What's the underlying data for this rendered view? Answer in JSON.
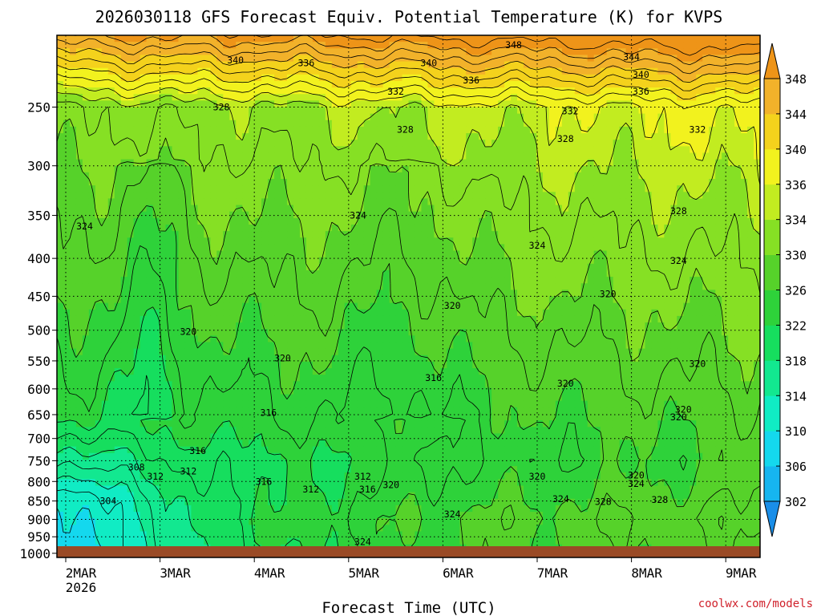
{
  "chart_data": {
    "type": "heatmap",
    "title": "2026030118 GFS Forecast Equiv. Potential Temperature (K) for KVPS",
    "xlabel": "Forecast Time (UTC)",
    "ylabel": "",
    "credit": "coolwx.com/models",
    "x_ticks": [
      "2MAR",
      "3MAR",
      "4MAR",
      "5MAR",
      "6MAR",
      "7MAR",
      "8MAR",
      "9MAR"
    ],
    "x_year_label": "2026",
    "x_range": [
      "2026-03-02T00",
      "2026-03-09T00"
    ],
    "y_ticks": [
      250,
      300,
      350,
      400,
      450,
      500,
      550,
      600,
      650,
      700,
      750,
      800,
      850,
      900,
      950,
      1000
    ],
    "y_range": [
      200,
      1013
    ],
    "y_scale": "log-pressure (inverted)",
    "colorbar": {
      "levels": [
        302,
        306,
        310,
        314,
        318,
        322,
        326,
        330,
        334,
        336,
        340,
        344,
        348
      ],
      "colors": [
        "#1a8ee8",
        "#16b5f0",
        "#14d8ee",
        "#10ecc4",
        "#12e890",
        "#16de5e",
        "#2ed23a",
        "#56d22a",
        "#86e024",
        "#c2ec20",
        "#f2f21e",
        "#f4d21c",
        "#f2b22a",
        "#ee9418"
      ],
      "extend": "both"
    },
    "series": [
      {
        "name": "time_days",
        "values": [
          0,
          0.5,
          1,
          1.5,
          2,
          2.5,
          3,
          3.5,
          4,
          4.5,
          5,
          5.5,
          6,
          6.5,
          7
        ]
      },
      {
        "name": "theta_e_250hPa",
        "values": [
          325,
          328,
          330,
          331,
          332,
          332,
          332,
          332,
          333,
          333,
          334,
          334,
          334,
          335,
          336
        ]
      },
      {
        "name": "theta_e_500hPa",
        "values": [
          322,
          321,
          322,
          320,
          321,
          319,
          319,
          318,
          320,
          321,
          322,
          322,
          323,
          323,
          323
        ]
      },
      {
        "name": "theta_e_800hPa",
        "values": [
          304,
          307,
          312,
          312,
          313,
          314,
          316,
          320,
          320,
          322,
          322,
          324,
          326,
          326,
          327
        ]
      }
    ],
    "contour_labels": [
      {
        "value": 348,
        "t": 4.75,
        "p": 206
      },
      {
        "value": 344,
        "t": 6.0,
        "p": 214
      },
      {
        "value": 340,
        "t": 1.8,
        "p": 216
      },
      {
        "value": 336,
        "t": 2.55,
        "p": 218
      },
      {
        "value": 340,
        "t": 3.85,
        "p": 218
      },
      {
        "value": 336,
        "t": 4.3,
        "p": 230
      },
      {
        "value": 340,
        "t": 6.1,
        "p": 226
      },
      {
        "value": 336,
        "t": 6.1,
        "p": 238
      },
      {
        "value": 332,
        "t": 3.5,
        "p": 238
      },
      {
        "value": 328,
        "t": 1.65,
        "p": 250
      },
      {
        "value": 332,
        "t": 5.35,
        "p": 253
      },
      {
        "value": 328,
        "t": 3.6,
        "p": 268
      },
      {
        "value": 328,
        "t": 5.3,
        "p": 276
      },
      {
        "value": 332,
        "t": 6.7,
        "p": 268
      },
      {
        "value": 324,
        "t": 0.2,
        "p": 362
      },
      {
        "value": 324,
        "t": 3.1,
        "p": 350
      },
      {
        "value": 324,
        "t": 5.0,
        "p": 384
      },
      {
        "value": 328,
        "t": 6.5,
        "p": 345
      },
      {
        "value": 324,
        "t": 6.5,
        "p": 403
      },
      {
        "value": 320,
        "t": 1.3,
        "p": 502
      },
      {
        "value": 320,
        "t": 2.3,
        "p": 545
      },
      {
        "value": 320,
        "t": 4.1,
        "p": 463
      },
      {
        "value": 320,
        "t": 5.75,
        "p": 447
      },
      {
        "value": 316,
        "t": 3.9,
        "p": 580
      },
      {
        "value": 316,
        "t": 2.15,
        "p": 646
      },
      {
        "value": 320,
        "t": 5.3,
        "p": 590
      },
      {
        "value": 320,
        "t": 6.55,
        "p": 640
      },
      {
        "value": 320,
        "t": 6.5,
        "p": 655
      },
      {
        "value": 320,
        "t": 6.7,
        "p": 555
      },
      {
        "value": 316,
        "t": 1.4,
        "p": 727
      },
      {
        "value": 312,
        "t": 1.3,
        "p": 775
      },
      {
        "value": 308,
        "t": 0.75,
        "p": 765
      },
      {
        "value": 312,
        "t": 0.95,
        "p": 788
      },
      {
        "value": 316,
        "t": 2.1,
        "p": 800
      },
      {
        "value": 312,
        "t": 2.6,
        "p": 820
      },
      {
        "value": 312,
        "t": 3.15,
        "p": 788
      },
      {
        "value": 316,
        "t": 3.2,
        "p": 820
      },
      {
        "value": 320,
        "t": 3.45,
        "p": 808
      },
      {
        "value": 304,
        "t": 0.45,
        "p": 850
      },
      {
        "value": 320,
        "t": 5.0,
        "p": 788
      },
      {
        "value": 324,
        "t": 5.25,
        "p": 845
      },
      {
        "value": 320,
        "t": 6.05,
        "p": 785
      },
      {
        "value": 324,
        "t": 6.05,
        "p": 805
      },
      {
        "value": 328,
        "t": 6.3,
        "p": 847
      },
      {
        "value": 328,
        "t": 5.7,
        "p": 852
      },
      {
        "value": 324,
        "t": 4.1,
        "p": 885
      },
      {
        "value": 324,
        "t": 3.15,
        "p": 965
      }
    ]
  }
}
